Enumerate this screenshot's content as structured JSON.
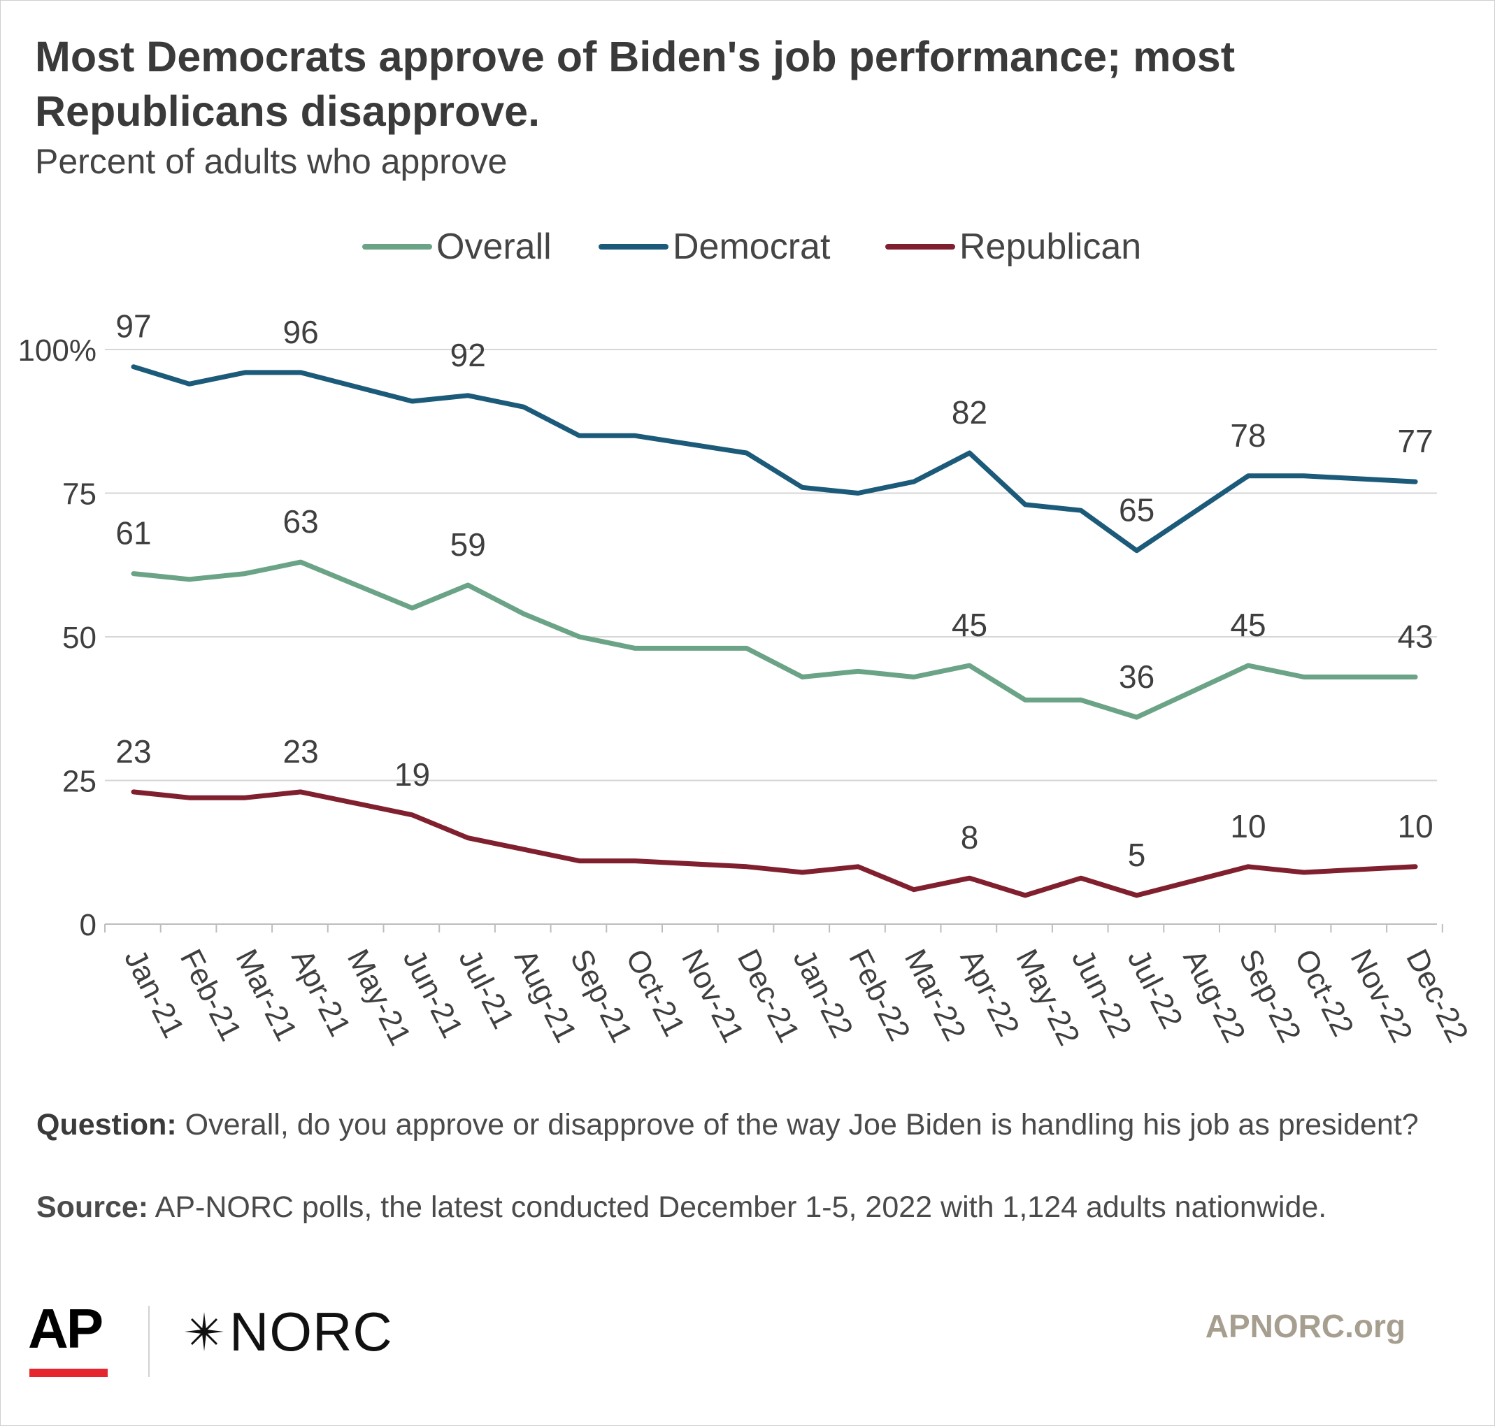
{
  "title": "Most Democrats approve of Biden's job performance; most Republicans disapprove.",
  "subtitle": "Percent of adults who approve",
  "legend": [
    {
      "label": "Overall",
      "color": "#6aa386"
    },
    {
      "label": "Democrat",
      "color": "#1c5a7a"
    },
    {
      "label": "Republican",
      "color": "#80202f"
    }
  ],
  "chart_data": {
    "type": "line",
    "categories": [
      "Jan-21",
      "Feb-21",
      "Mar-21",
      "Apr-21",
      "May-21",
      "Jun-21",
      "Jul-21",
      "Aug-21",
      "Sep-21",
      "Oct-21",
      "Nov-21",
      "Dec-21",
      "Jan-22",
      "Feb-22",
      "Mar-22",
      "Apr-22",
      "May-22",
      "Jun-22",
      "Jul-22",
      "Aug-22",
      "Sep-22",
      "Oct-22",
      "Nov-22",
      "Dec-22"
    ],
    "x_positions": [
      0,
      1,
      2,
      3,
      4,
      5,
      6,
      7,
      8,
      9,
      10,
      11,
      12,
      13,
      14,
      15,
      16,
      17,
      18,
      19,
      20,
      21,
      22,
      23
    ],
    "series": [
      {
        "name": "Overall",
        "color": "#6aa386",
        "x": [
          0,
          1,
          2,
          3,
          5,
          6,
          7,
          8,
          9,
          11,
          12,
          13,
          14,
          15,
          16,
          17,
          18,
          20,
          21,
          23
        ],
        "values": [
          61,
          60,
          61,
          63,
          55,
          59,
          54,
          50,
          48,
          48,
          43,
          44,
          43,
          45,
          39,
          39,
          36,
          45,
          43,
          43
        ],
        "labels": [
          {
            "i": 0,
            "text": "61"
          },
          {
            "i": 3,
            "text": "63"
          },
          {
            "i": 6,
            "text": "59"
          },
          {
            "i": 15,
            "text": "45"
          },
          {
            "i": 18,
            "text": "36"
          },
          {
            "i": 20,
            "text": "45"
          },
          {
            "i": 23,
            "text": "43"
          }
        ]
      },
      {
        "name": "Democrat",
        "color": "#1c5a7a",
        "x": [
          0,
          1,
          2,
          3,
          5,
          6,
          7,
          8,
          9,
          11,
          12,
          13,
          14,
          15,
          16,
          17,
          18,
          20,
          21,
          23
        ],
        "values": [
          97,
          94,
          96,
          96,
          91,
          92,
          90,
          85,
          85,
          82,
          76,
          75,
          77,
          82,
          73,
          72,
          65,
          78,
          78,
          77
        ],
        "labels": [
          {
            "i": 0,
            "text": "97"
          },
          {
            "i": 3,
            "text": "96"
          },
          {
            "i": 6,
            "text": "92"
          },
          {
            "i": 15,
            "text": "82"
          },
          {
            "i": 18,
            "text": "65"
          },
          {
            "i": 20,
            "text": "78"
          },
          {
            "i": 23,
            "text": "77"
          }
        ]
      },
      {
        "name": "Republican",
        "color": "#80202f",
        "x": [
          0,
          1,
          2,
          3,
          5,
          6,
          7,
          8,
          9,
          11,
          12,
          13,
          14,
          15,
          16,
          17,
          18,
          20,
          21,
          23
        ],
        "values": [
          23,
          22,
          22,
          23,
          19,
          15,
          13,
          11,
          11,
          10,
          9,
          10,
          6,
          8,
          5,
          8,
          5,
          10,
          9,
          10
        ],
        "labels": [
          {
            "i": 0,
            "text": "23"
          },
          {
            "i": 3,
            "text": "23"
          },
          {
            "i": 5,
            "text": "19"
          },
          {
            "i": 15,
            "text": "8"
          },
          {
            "i": 18,
            "text": "5"
          },
          {
            "i": 20,
            "text": "10"
          },
          {
            "i": 23,
            "text": "10"
          }
        ]
      }
    ],
    "yticks": [
      {
        "value": 0,
        "label": "0"
      },
      {
        "value": 25,
        "label": "25"
      },
      {
        "value": 50,
        "label": "50"
      },
      {
        "value": 75,
        "label": "75"
      },
      {
        "value": 100,
        "label": "100%"
      }
    ],
    "ylim": [
      0,
      100
    ],
    "grid": true,
    "legend_position": "top"
  },
  "notes": {
    "question_label": "Question:",
    "question_text": " Overall, do you approve or disapprove of the way Joe Biden is handling his job as president?",
    "source_label": "Source:",
    "source_text": " AP-NORC polls, the latest conducted December 1-5, 2022 with 1,124 adults nationwide."
  },
  "branding": {
    "ap_logo": "AP",
    "norc_logo": "NORC",
    "norc_icon": "star-icon",
    "website": "APNORC.org",
    "ap_accent_color": "#e5262f"
  }
}
